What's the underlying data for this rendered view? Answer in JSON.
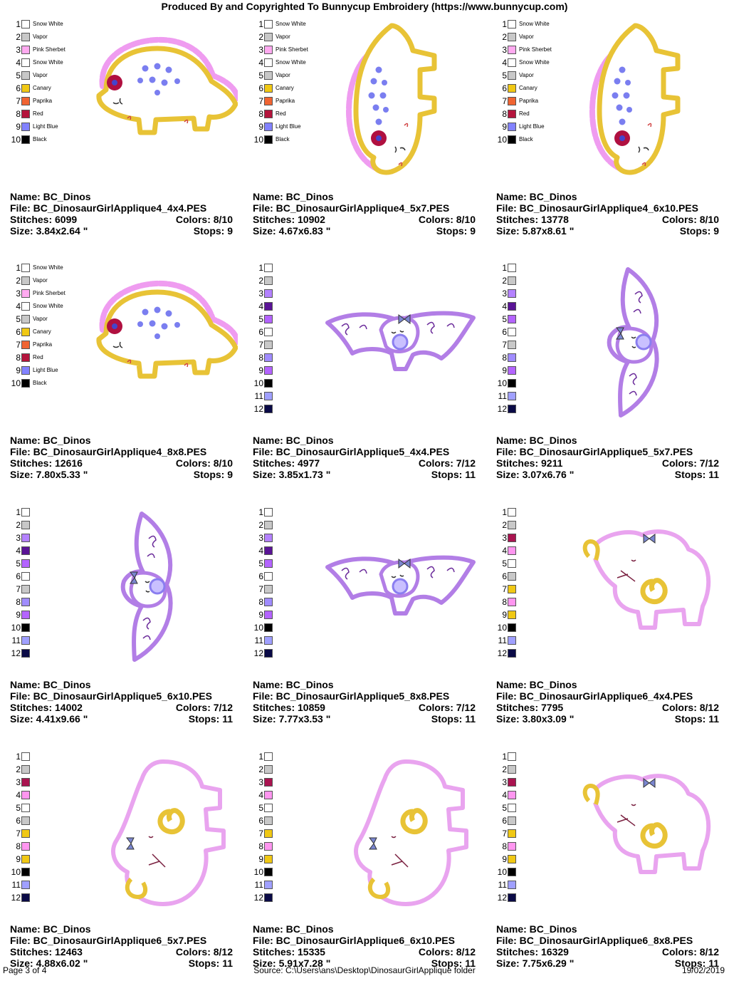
{
  "header": "Produced By and Copyrighted To Bunnycup Embroidery (https://www.bunnycup.com)",
  "labels": {
    "name": "Name:",
    "file": "File:",
    "stitches": "Stitches:",
    "colors": "Colors:",
    "size": "Size:",
    "stops": "Stops:"
  },
  "palettes": {
    "A": [
      {
        "num": "1",
        "color": "#ffffff",
        "name": "Snow White"
      },
      {
        "num": "2",
        "color": "#c8c8c8",
        "name": "Vapor"
      },
      {
        "num": "3",
        "color": "#ffaaf0",
        "name": "Pink Sherbet"
      },
      {
        "num": "4",
        "color": "#ffffff",
        "name": "Snow White"
      },
      {
        "num": "5",
        "color": "#c8c8c8",
        "name": "Vapor"
      },
      {
        "num": "6",
        "color": "#f0c814",
        "name": "Canary"
      },
      {
        "num": "7",
        "color": "#f06432",
        "name": "Paprika"
      },
      {
        "num": "8",
        "color": "#b4143c",
        "name": "Red"
      },
      {
        "num": "9",
        "color": "#8282ff",
        "name": "Light Blue"
      },
      {
        "num": "10",
        "color": "#000000",
        "name": "Black"
      }
    ],
    "B": [
      {
        "num": "1",
        "color": "#ffffff",
        "name": ""
      },
      {
        "num": "2",
        "color": "#c8c8c8",
        "name": ""
      },
      {
        "num": "3",
        "color": "#b482ff",
        "name": ""
      },
      {
        "num": "4",
        "color": "#5a1496",
        "name": ""
      },
      {
        "num": "5",
        "color": "#b464ff",
        "name": ""
      },
      {
        "num": "6",
        "color": "#ffffff",
        "name": ""
      },
      {
        "num": "7",
        "color": "#c8c8c8",
        "name": ""
      },
      {
        "num": "8",
        "color": "#a08cff",
        "name": ""
      },
      {
        "num": "9",
        "color": "#b464ff",
        "name": ""
      },
      {
        "num": "10",
        "color": "#000000",
        "name": ""
      },
      {
        "num": "11",
        "color": "#a0a0ff",
        "name": ""
      },
      {
        "num": "12",
        "color": "#0a0a46",
        "name": ""
      }
    ],
    "C": [
      {
        "num": "1",
        "color": "#ffffff",
        "name": ""
      },
      {
        "num": "2",
        "color": "#c8c8c8",
        "name": ""
      },
      {
        "num": "3",
        "color": "#aa1450",
        "name": ""
      },
      {
        "num": "4",
        "color": "#ff96f0",
        "name": ""
      },
      {
        "num": "5",
        "color": "#ffffff",
        "name": ""
      },
      {
        "num": "6",
        "color": "#c8c8c8",
        "name": ""
      },
      {
        "num": "7",
        "color": "#f0c814",
        "name": ""
      },
      {
        "num": "8",
        "color": "#ff96f0",
        "name": ""
      },
      {
        "num": "9",
        "color": "#f0c814",
        "name": ""
      },
      {
        "num": "10",
        "color": "#000000",
        "name": ""
      },
      {
        "num": "11",
        "color": "#a0a0ff",
        "name": ""
      },
      {
        "num": "12",
        "color": "#0a0a46",
        "name": ""
      }
    ]
  },
  "designs": [
    {
      "name": "BC_Dinos",
      "file": "BC_DinosaurGirlApplique4_4x4.PES",
      "stitches": "6099",
      "colors": "8/10",
      "size": "3.84x2.64 \"",
      "stops": "9",
      "palette": "A",
      "art": "stego-wide"
    },
    {
      "name": "BC_Dinos",
      "file": "BC_DinosaurGirlApplique4_5x7.PES",
      "stitches": "10902",
      "colors": "8/10",
      "size": "4.67x6.83 \"",
      "stops": "9",
      "palette": "A",
      "art": "stego-tall"
    },
    {
      "name": "BC_Dinos",
      "file": "BC_DinosaurGirlApplique4_6x10.PES",
      "stitches": "13778",
      "colors": "8/10",
      "size": "5.87x8.61 \"",
      "stops": "9",
      "palette": "A",
      "art": "stego-tall"
    },
    {
      "name": "BC_Dinos",
      "file": "BC_DinosaurGirlApplique4_8x8.PES",
      "stitches": "12616",
      "colors": "8/10",
      "size": "7.80x5.33 \"",
      "stops": "9",
      "palette": "A",
      "art": "stego-wide"
    },
    {
      "name": "BC_Dinos",
      "file": "BC_DinosaurGirlApplique5_4x4.PES",
      "stitches": "4977",
      "colors": "7/12",
      "size": "3.85x1.73 \"",
      "stops": "11",
      "palette": "B",
      "art": "ptero-wide"
    },
    {
      "name": "BC_Dinos",
      "file": "BC_DinosaurGirlApplique5_5x7.PES",
      "stitches": "9211",
      "colors": "7/12",
      "size": "3.07x6.76 \"",
      "stops": "11",
      "palette": "B",
      "art": "ptero-tall"
    },
    {
      "name": "BC_Dinos",
      "file": "BC_DinosaurGirlApplique5_6x10.PES",
      "stitches": "14002",
      "colors": "7/12",
      "size": "4.41x9.66 \"",
      "stops": "11",
      "palette": "B",
      "art": "ptero-tall"
    },
    {
      "name": "BC_Dinos",
      "file": "BC_DinosaurGirlApplique5_8x8.PES",
      "stitches": "10859",
      "colors": "7/12",
      "size": "7.77x3.53 \"",
      "stops": "11",
      "palette": "B",
      "art": "ptero-wide"
    },
    {
      "name": "BC_Dinos",
      "file": "BC_DinosaurGirlApplique6_4x4.PES",
      "stitches": "7795",
      "colors": "8/12",
      "size": "3.80x3.09 \"",
      "stops": "11",
      "palette": "C",
      "art": "ele-wide"
    },
    {
      "name": "BC_Dinos",
      "file": "BC_DinosaurGirlApplique6_5x7.PES",
      "stitches": "12463",
      "colors": "8/12",
      "size": "4.88x6.02 \"",
      "stops": "11",
      "palette": "C",
      "art": "ele-tall"
    },
    {
      "name": "BC_Dinos",
      "file": "BC_DinosaurGirlApplique6_6x10.PES",
      "stitches": "15335",
      "colors": "8/12",
      "size": "5.91x7.28 \"",
      "stops": "11",
      "palette": "C",
      "art": "ele-tall"
    },
    {
      "name": "BC_Dinos",
      "file": "BC_DinosaurGirlApplique6_8x8.PES",
      "stitches": "16329",
      "colors": "8/12",
      "size": "7.75x6.29 \"",
      "stops": "11",
      "palette": "C",
      "art": "ele-wide"
    }
  ],
  "footer": {
    "page": "Page 3 of 4",
    "source": "Source: C:\\Users\\ans\\Desktop\\DinosaurGirlApplique folder",
    "date": "19/02/2019"
  }
}
